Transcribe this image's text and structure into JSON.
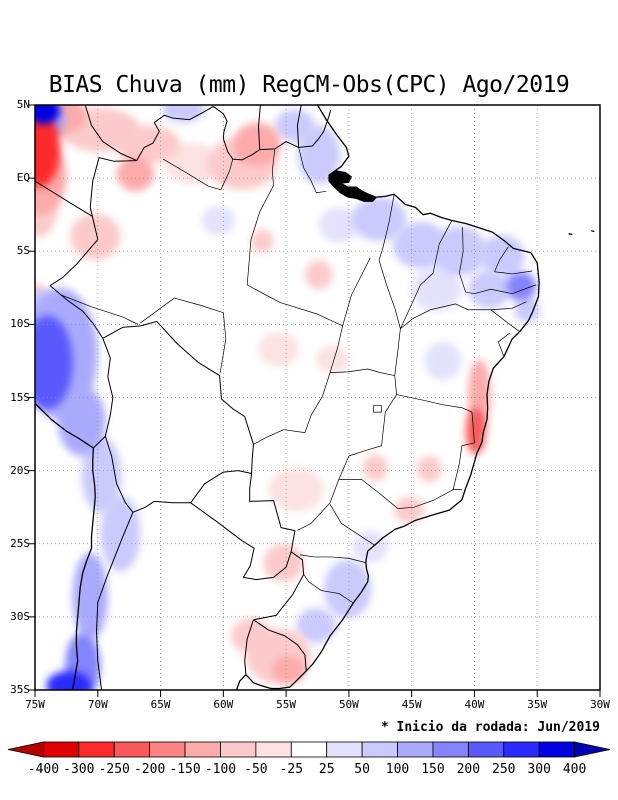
{
  "title": "BIAS Chuva (mm) RegCM-Obs(CPC) Ago/2019",
  "note": "* Inicio da rodada: Jun/2019",
  "axes": {
    "lat_ticks": [
      {
        "label": "5N",
        "value": 5
      },
      {
        "label": "EQ",
        "value": 0
      },
      {
        "label": "5S",
        "value": -5
      },
      {
        "label": "10S",
        "value": -10
      },
      {
        "label": "15S",
        "value": -15
      },
      {
        "label": "20S",
        "value": -20
      },
      {
        "label": "25S",
        "value": -25
      },
      {
        "label": "30S",
        "value": -30
      },
      {
        "label": "35S",
        "value": -35
      }
    ],
    "lon_ticks": [
      {
        "label": "75W",
        "value": -75
      },
      {
        "label": "70W",
        "value": -70
      },
      {
        "label": "65W",
        "value": -65
      },
      {
        "label": "60W",
        "value": -60
      },
      {
        "label": "55W",
        "value": -55
      },
      {
        "label": "50W",
        "value": -50
      },
      {
        "label": "45W",
        "value": -45
      },
      {
        "label": "40W",
        "value": -40
      },
      {
        "label": "35W",
        "value": -35
      },
      {
        "label": "30W",
        "value": -30
      }
    ]
  },
  "chart_data": {
    "type": "heatmap",
    "subtype": "filled-contour-bias-map",
    "title": "BIAS Chuva (mm) RegCM-Obs(CPC) Ago/2019",
    "note": "* Inicio da rodada: Jun/2019",
    "units": "mm",
    "lon_range": [
      -75,
      -30
    ],
    "lat_range": [
      -35,
      5
    ],
    "grid": "5-degree dotted",
    "legend_position": "bottom",
    "levels": [
      -400,
      -300,
      -250,
      -200,
      -150,
      -100,
      -50,
      -25,
      25,
      50,
      100,
      150,
      200,
      250,
      300,
      400
    ],
    "palette": [
      "#b40000",
      "#e10000",
      "#fc2a2a",
      "#fc5a5a",
      "#fc8484",
      "#fcaaaa",
      "#fccaca",
      "#fce2e2",
      "#ffffff",
      "#e2e2fc",
      "#cacafc",
      "#aaaafc",
      "#8484fc",
      "#5a5afc",
      "#2a2afc",
      "#0000e1",
      "#0000b4"
    ],
    "bias_regions": [
      {
        "lon": -74.6,
        "lat": 2.0,
        "rx": 1.6,
        "ry": 2.6,
        "value": -260
      },
      {
        "lon": -73.5,
        "lat": 4.3,
        "rx": 2.6,
        "ry": 1.4,
        "value": -120
      },
      {
        "lon": -74.5,
        "lat": 0.0,
        "rx": 2.0,
        "ry": 2.5,
        "value": -120
      },
      {
        "lon": -69.8,
        "lat": 3.3,
        "rx": 3.2,
        "ry": 1.5,
        "value": -60
      },
      {
        "lon": -66.0,
        "lat": 2.3,
        "rx": 2.6,
        "ry": 1.3,
        "value": -70
      },
      {
        "lon": -67.0,
        "lat": 0.3,
        "rx": 1.5,
        "ry": 1.2,
        "value": -110
      },
      {
        "lon": -62.5,
        "lat": 1.0,
        "rx": 2.2,
        "ry": 1.4,
        "value": -45
      },
      {
        "lon": -57.3,
        "lat": 2.3,
        "rx": 1.9,
        "ry": 1.5,
        "value": -140
      },
      {
        "lon": -58.5,
        "lat": 1.0,
        "rx": 2.8,
        "ry": 1.8,
        "value": -60
      },
      {
        "lon": -70.2,
        "lat": -4.0,
        "rx": 2.0,
        "ry": 1.6,
        "value": -60
      },
      {
        "lon": -74.7,
        "lat": -2.0,
        "rx": 1.5,
        "ry": 2.0,
        "value": -70
      },
      {
        "lon": -74.9,
        "lat": -8.8,
        "rx": 1.0,
        "ry": 1.6,
        "value": -70
      },
      {
        "lon": -56.9,
        "lat": -4.3,
        "rx": 0.9,
        "ry": 0.8,
        "value": -90
      },
      {
        "lon": -52.4,
        "lat": -6.6,
        "rx": 1.1,
        "ry": 1.0,
        "value": -60
      },
      {
        "lon": -55.6,
        "lat": -11.7,
        "rx": 1.6,
        "ry": 1.2,
        "value": -50
      },
      {
        "lon": -51.3,
        "lat": -12.4,
        "rx": 1.3,
        "ry": 1.0,
        "value": -45
      },
      {
        "lon": -39.6,
        "lat": -14.8,
        "rx": 0.9,
        "ry": 2.4,
        "value": -140
      },
      {
        "lon": -39.9,
        "lat": -17.3,
        "rx": 0.8,
        "ry": 1.6,
        "value": -220
      },
      {
        "lon": -43.6,
        "lat": -19.9,
        "rx": 1.0,
        "ry": 0.9,
        "value": -70
      },
      {
        "lon": -47.9,
        "lat": -19.8,
        "rx": 1.0,
        "ry": 0.9,
        "value": -55
      },
      {
        "lon": -45.2,
        "lat": -22.7,
        "rx": 1.2,
        "ry": 0.9,
        "value": -90
      },
      {
        "lon": -54.2,
        "lat": -21.3,
        "rx": 2.2,
        "ry": 1.5,
        "value": -45
      },
      {
        "lon": -55.2,
        "lat": -26.3,
        "rx": 1.6,
        "ry": 1.3,
        "value": -70
      },
      {
        "lon": -55.6,
        "lat": -32.7,
        "rx": 2.6,
        "ry": 1.9,
        "value": -80
      },
      {
        "lon": -54.8,
        "lat": -33.6,
        "rx": 1.3,
        "ry": 0.9,
        "value": -140
      },
      {
        "lon": -57.8,
        "lat": -31.3,
        "rx": 1.6,
        "ry": 1.2,
        "value": -55
      },
      {
        "lon": -74.3,
        "lat": 4.6,
        "rx": 1.3,
        "ry": 0.9,
        "value": 330
      },
      {
        "lon": -74.6,
        "lat": 3.9,
        "rx": 2.0,
        "ry": 1.3,
        "value": 120
      },
      {
        "lon": -63.2,
        "lat": 4.7,
        "rx": 1.7,
        "ry": 0.9,
        "value": 80
      },
      {
        "lon": -52.4,
        "lat": 1.6,
        "rx": 1.7,
        "ry": 2.0,
        "value": 90
      },
      {
        "lon": -54.3,
        "lat": 3.6,
        "rx": 1.6,
        "ry": 1.1,
        "value": 50
      },
      {
        "lon": -50.8,
        "lat": -3.2,
        "rx": 1.6,
        "ry": 1.2,
        "value": 40
      },
      {
        "lon": -47.6,
        "lat": -2.8,
        "rx": 2.2,
        "ry": 1.5,
        "value": 60
      },
      {
        "lon": -44.3,
        "lat": -4.6,
        "rx": 2.2,
        "ry": 1.6,
        "value": 60
      },
      {
        "lon": -41.2,
        "lat": -5.0,
        "rx": 2.2,
        "ry": 1.7,
        "value": 60
      },
      {
        "lon": -37.8,
        "lat": -5.3,
        "rx": 1.8,
        "ry": 1.4,
        "value": 80
      },
      {
        "lon": -36.3,
        "lat": -7.4,
        "rx": 1.2,
        "ry": 1.0,
        "value": 170
      },
      {
        "lon": -38.8,
        "lat": -7.6,
        "rx": 1.7,
        "ry": 1.3,
        "value": 70
      },
      {
        "lon": -43.0,
        "lat": -7.6,
        "rx": 2.0,
        "ry": 1.5,
        "value": 45
      },
      {
        "lon": -60.4,
        "lat": -2.9,
        "rx": 1.3,
        "ry": 1.0,
        "value": 40
      },
      {
        "lon": -42.5,
        "lat": -12.5,
        "rx": 1.5,
        "ry": 1.3,
        "value": 35
      },
      {
        "lon": -74.0,
        "lat": -12.6,
        "rx": 2.0,
        "ry": 3.2,
        "value": 230
      },
      {
        "lon": -73.0,
        "lat": -12.0,
        "rx": 3.0,
        "ry": 4.5,
        "value": 110
      },
      {
        "lon": -71.3,
        "lat": -16.6,
        "rx": 1.9,
        "ry": 2.4,
        "value": 140
      },
      {
        "lon": -74.6,
        "lat": -9.8,
        "rx": 1.4,
        "ry": 2.2,
        "value": 90
      },
      {
        "lon": -69.7,
        "lat": -20.3,
        "rx": 1.6,
        "ry": 2.6,
        "value": 90
      },
      {
        "lon": -68.2,
        "lat": -24.3,
        "rx": 1.6,
        "ry": 2.6,
        "value": 60
      },
      {
        "lon": -70.6,
        "lat": -28.6,
        "rx": 1.4,
        "ry": 3.0,
        "value": 110
      },
      {
        "lon": -71.2,
        "lat": -33.3,
        "rx": 1.4,
        "ry": 2.2,
        "value": 170
      },
      {
        "lon": -72.3,
        "lat": -34.7,
        "rx": 1.8,
        "ry": 1.0,
        "value": 280
      },
      {
        "lon": -50.1,
        "lat": -28.1,
        "rx": 1.9,
        "ry": 2.0,
        "value": 70
      },
      {
        "lon": -52.6,
        "lat": -30.6,
        "rx": 1.6,
        "ry": 1.2,
        "value": 50
      },
      {
        "lon": -48.3,
        "lat": -25.2,
        "rx": 1.4,
        "ry": 1.1,
        "value": 45
      },
      {
        "lon": -35.8,
        "lat": -9.0,
        "rx": 1.0,
        "ry": 0.9,
        "value": 90
      }
    ]
  }
}
